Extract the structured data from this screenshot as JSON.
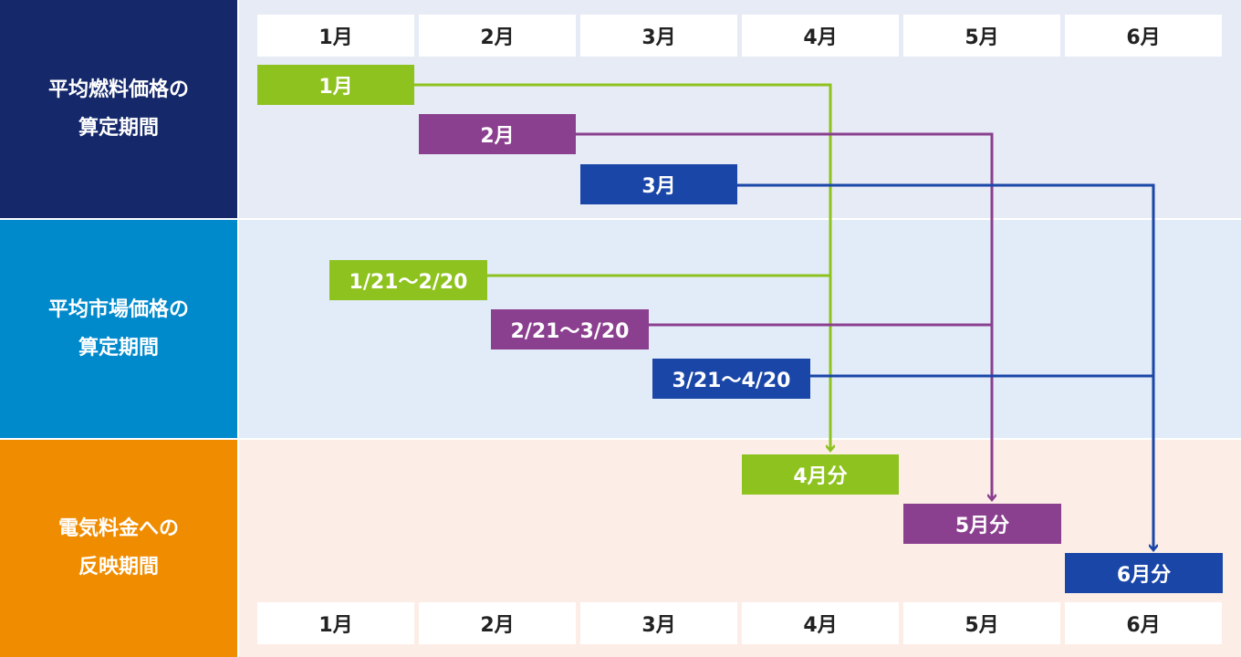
{
  "rows": {
    "fuel": {
      "line1": "平均燃料価格の",
      "line2": "算定期間",
      "color": "#14286a",
      "bg": "#e6ebf5"
    },
    "market": {
      "line1": "平均市場価格の",
      "line2": "算定期間",
      "color": "#0089cb",
      "bg": "#e1ecf8"
    },
    "reflect": {
      "line1": "電気料金への",
      "line2": "反映期間",
      "color": "#f08c00",
      "bg": "#fceee7"
    }
  },
  "months": [
    "1月",
    "2月",
    "3月",
    "4月",
    "5月",
    "6月"
  ],
  "colors": {
    "green": "#8ec21f",
    "purple": "#8b3f8f",
    "blue": "#1a46a8"
  },
  "bars": {
    "fuel": [
      "1月",
      "2月",
      "3月"
    ],
    "market": [
      "1/21～2/20",
      "2/21～3/20",
      "3/21～4/20"
    ],
    "reflect": [
      "4月分",
      "5月分",
      "6月分"
    ]
  }
}
